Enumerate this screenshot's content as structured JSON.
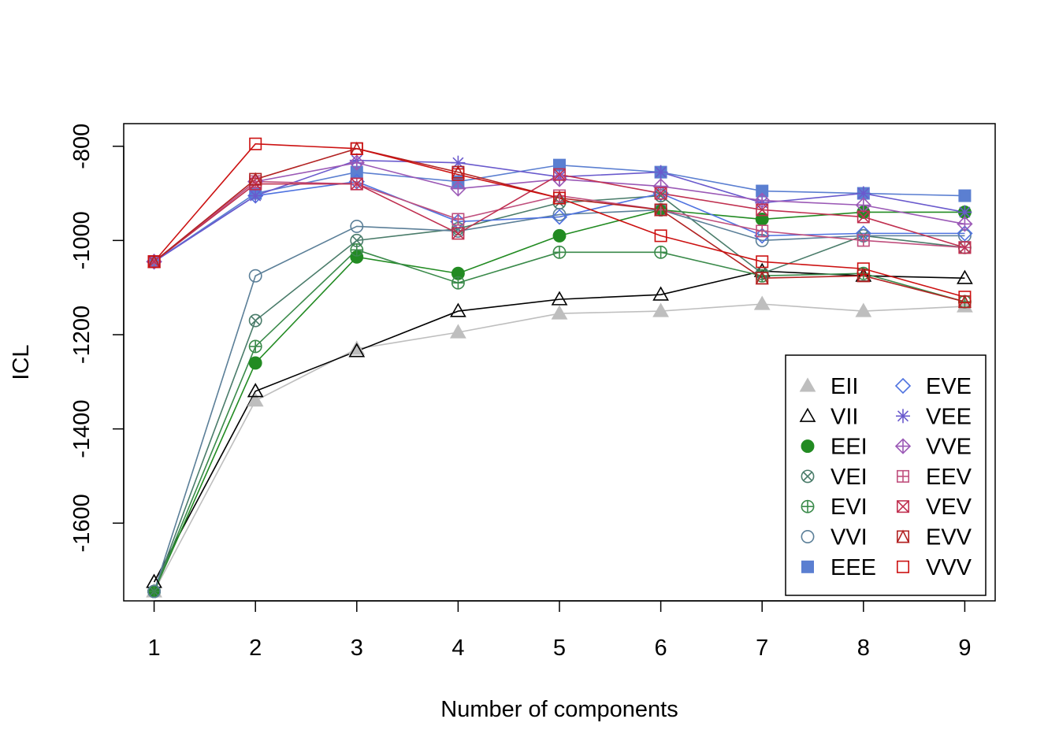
{
  "chart_data": {
    "type": "line",
    "xlabel": "Number of components",
    "ylabel": "ICL",
    "x": [
      1,
      2,
      3,
      4,
      5,
      6,
      7,
      8,
      9
    ],
    "xlim": [
      0.7,
      9.3
    ],
    "ylim": [
      -1765,
      -752
    ],
    "yticks": [
      -800,
      -1000,
      -1200,
      -1400,
      -1600
    ],
    "ytick_labels": [
      "-800",
      "-1000",
      "-1200",
      "-1400",
      "-1600"
    ],
    "xtick_labels": [
      "1",
      "2",
      "3",
      "4",
      "5",
      "6",
      "7",
      "8",
      "9"
    ],
    "legend_position": "bottom-right",
    "series": [
      {
        "name": "EII",
        "color": "#bebebe",
        "symbol": "triangle-filled",
        "values": [
          -1745,
          -1340,
          -1230,
          -1195,
          -1155,
          -1150,
          -1135,
          -1150,
          -1140
        ]
      },
      {
        "name": "VII",
        "color": "#000000",
        "symbol": "triangle-open",
        "values": [
          -1725,
          -1320,
          -1235,
          -1150,
          -1125,
          -1115,
          -1065,
          -1075,
          -1080
        ]
      },
      {
        "name": "EEI",
        "color": "#228b22",
        "symbol": "circle-filled",
        "values": [
          -1745,
          -1260,
          -1035,
          -1070,
          -990,
          -935,
          -955,
          -940,
          -940
        ]
      },
      {
        "name": "VEI",
        "color": "#4a7c6a",
        "symbol": "circle-x",
        "values": [
          -1745,
          -1170,
          -1000,
          -975,
          -920,
          -905,
          -1070,
          -990,
          -1015
        ]
      },
      {
        "name": "EVI",
        "color": "#3a8a4a",
        "symbol": "circle-plus",
        "values": [
          -1745,
          -1225,
          -1020,
          -1090,
          -1025,
          -1025,
          -1075,
          -1070,
          -1130
        ]
      },
      {
        "name": "VVI",
        "color": "#5b7f98",
        "symbol": "circle-open",
        "values": [
          -1745,
          -1075,
          -970,
          -980,
          -945,
          -935,
          -1000,
          -990,
          -990
        ]
      },
      {
        "name": "EEE",
        "color": "#5b7fd1",
        "symbol": "square-filled",
        "values": [
          -1045,
          -900,
          -855,
          -875,
          -840,
          -855,
          -895,
          -900,
          -905
        ]
      },
      {
        "name": "EVE",
        "color": "#4f73e0",
        "symbol": "diamond-open",
        "values": [
          -1045,
          -905,
          -875,
          -960,
          -950,
          -900,
          -990,
          -985,
          -985
        ]
      },
      {
        "name": "VEE",
        "color": "#6a5acd",
        "symbol": "asterisk",
        "values": [
          -1045,
          -905,
          -830,
          -835,
          -865,
          -855,
          -920,
          -900,
          -940
        ]
      },
      {
        "name": "VVE",
        "color": "#9b59b6",
        "symbol": "diamond-plus",
        "values": [
          -1045,
          -875,
          -835,
          -890,
          -870,
          -885,
          -915,
          -925,
          -965
        ]
      },
      {
        "name": "EEV",
        "color": "#c0507e",
        "symbol": "square-plus",
        "values": [
          -1045,
          -875,
          -880,
          -955,
          -905,
          -935,
          -980,
          -1000,
          -1015
        ]
      },
      {
        "name": "VEV",
        "color": "#c03050",
        "symbol": "square-x",
        "values": [
          -1045,
          -880,
          -880,
          -985,
          -860,
          -900,
          -935,
          -950,
          -1015
        ]
      },
      {
        "name": "EVV",
        "color": "#b22222",
        "symbol": "square-triangle",
        "values": [
          -1045,
          -870,
          -805,
          -855,
          -910,
          -935,
          -1080,
          -1075,
          -1130
        ]
      },
      {
        "name": "VVV",
        "color": "#cc1111",
        "symbol": "square-open",
        "values": [
          -1045,
          -795,
          -805,
          -860,
          -910,
          -990,
          -1045,
          -1060,
          -1120
        ]
      }
    ]
  }
}
